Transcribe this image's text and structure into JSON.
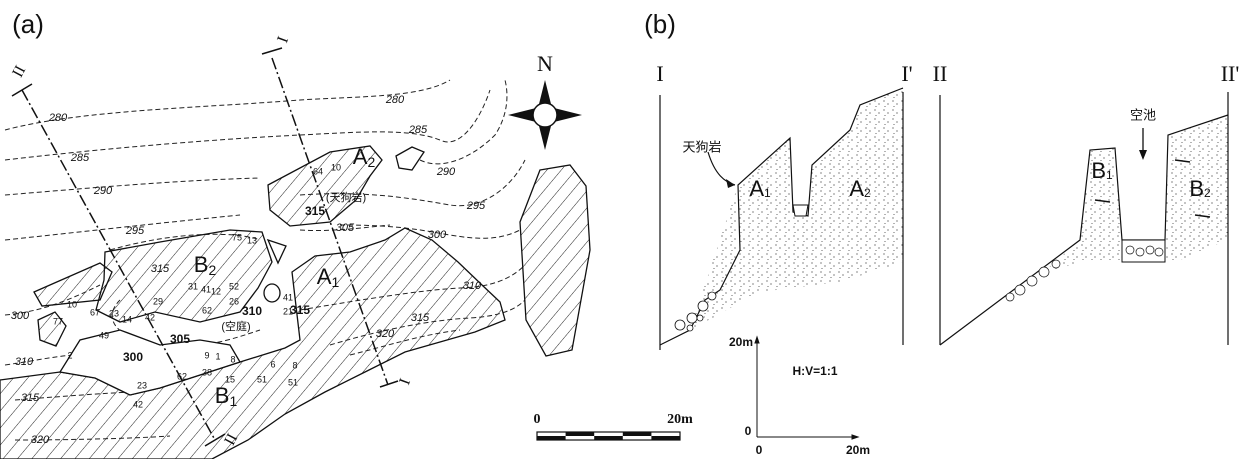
{
  "panel_a": {
    "label": "(a)",
    "north": "N",
    "section_labels": [
      "I",
      "I",
      "II",
      "II"
    ],
    "contour_labels": [
      "280",
      "280",
      "285",
      "285",
      "290",
      "290",
      "295",
      "295",
      "300",
      "300",
      "300",
      "305",
      "305",
      "310",
      "310",
      "310",
      "315",
      "315",
      "315",
      "315",
      "315",
      "320",
      "320"
    ],
    "zones": [
      {
        "letter": "A",
        "sub": "2"
      },
      {
        "letter": "B",
        "sub": "2"
      },
      {
        "letter": "A",
        "sub": "1"
      },
      {
        "letter": "B",
        "sub": "1"
      }
    ],
    "place_names": [
      "(天狗岩)",
      "(空庭)"
    ],
    "dips": [
      "64",
      "10",
      "75",
      "13",
      "31",
      "41",
      "12",
      "52",
      "26",
      "62",
      "29",
      "42",
      "14",
      "23",
      "67",
      "49",
      "10",
      "77",
      "2",
      "9",
      "1",
      "8",
      "15",
      "38",
      "62",
      "23",
      "42",
      "6",
      "8",
      "51",
      "51",
      "41",
      "21"
    ],
    "scale": [
      "0",
      "20m"
    ]
  },
  "panel_b": {
    "label": "(b)",
    "section_ends": [
      "I",
      "I'",
      "II",
      "II'"
    ],
    "rock_name": "天狗岩",
    "pond_name": "空池",
    "zones": [
      {
        "letter": "A",
        "sub": "1"
      },
      {
        "letter": "A",
        "sub": "2"
      },
      {
        "letter": "B",
        "sub": "1"
      },
      {
        "letter": "B",
        "sub": "2"
      }
    ],
    "axes": {
      "y_end": "20m",
      "y_origin": "0",
      "x_origin": "0",
      "x_end": "20m"
    },
    "ratio": "H:V=1:1"
  }
}
